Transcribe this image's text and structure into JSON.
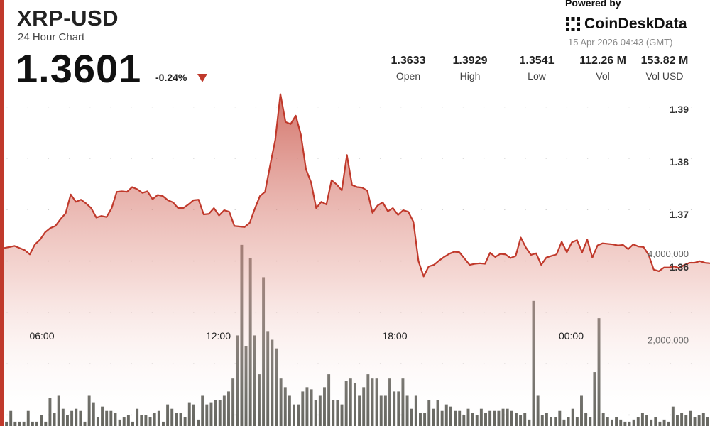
{
  "header": {
    "pair": "XRP-USD",
    "subtitle": "24 Hour Chart",
    "price": "1.3601",
    "change": "-0.24%",
    "powered_by": "Powered by",
    "brand": "CoinDeskData",
    "timestamp": "15 Apr 2026 04:43 (GMT)"
  },
  "stats": [
    {
      "value": "1.3633",
      "label": "Open"
    },
    {
      "value": "1.3929",
      "label": "High"
    },
    {
      "value": "1.3541",
      "label": "Low"
    },
    {
      "value": "112.26 M",
      "label": "Vol"
    },
    {
      "value": "153.82 M",
      "label": "Vol USD"
    }
  ],
  "colors": {
    "accent": "#c0392b",
    "line": "#c0392b",
    "volume_bar": "#666660",
    "grid_dot": "#c8c8c8"
  },
  "chart_data": {
    "type": "line",
    "title": "",
    "xlabel": "",
    "ylabel": "",
    "x_ticks": [
      "06:00",
      "12:00",
      "18:00",
      "00:00"
    ],
    "x_tick_hours": [
      6,
      12,
      18,
      24
    ],
    "x_range_hours": [
      4.72,
      28.72
    ],
    "price_axis": {
      "ticks": [
        "1.39",
        "1.38",
        "1.37",
        "1.36"
      ],
      "tick_values": [
        1.39,
        1.38,
        1.37,
        1.36
      ],
      "ylim": [
        1.3541,
        1.3929
      ]
    },
    "volume_axis": {
      "ticks": [
        "4,000,000",
        "2,000,000"
      ],
      "tick_values": [
        4000000,
        2000000
      ],
      "ylim": [
        0,
        4600000
      ]
    },
    "grid": "dotted-vertical",
    "price_series": {
      "name": "",
      "values": [
        1.3636,
        1.3638,
        1.364,
        1.3636,
        1.3632,
        1.3624,
        1.3643,
        1.3652,
        1.3666,
        1.3674,
        1.3678,
        1.3691,
        1.3702,
        1.3738,
        1.3724,
        1.3728,
        1.3721,
        1.3712,
        1.3694,
        1.3697,
        1.3695,
        1.3712,
        1.3743,
        1.3744,
        1.3743,
        1.3752,
        1.3748,
        1.3741,
        1.3744,
        1.3729,
        1.3737,
        1.3735,
        1.3727,
        1.3723,
        1.3712,
        1.3712,
        1.3719,
        1.3727,
        1.3728,
        1.37,
        1.3701,
        1.3712,
        1.3698,
        1.3708,
        1.3705,
        1.3678,
        1.3677,
        1.3676,
        1.3684,
        1.3711,
        1.3735,
        1.3743,
        1.3794,
        1.3842,
        1.3929,
        1.3876,
        1.3872,
        1.3888,
        1.3852,
        1.3786,
        1.3761,
        1.3712,
        1.3724,
        1.3719,
        1.3765,
        1.3757,
        1.3746,
        1.3813,
        1.3756,
        1.3752,
        1.3751,
        1.3745,
        1.3703,
        1.3717,
        1.3723,
        1.3706,
        1.3712,
        1.3699,
        1.3708,
        1.3705,
        1.3686,
        1.3611,
        1.3582,
        1.3601,
        1.3604,
        1.3612,
        1.3619,
        1.3625,
        1.3629,
        1.3628,
        1.3616,
        1.3604,
        1.3606,
        1.3607,
        1.3606,
        1.3627,
        1.3619,
        1.3625,
        1.3624,
        1.3617,
        1.3621,
        1.3656,
        1.3637,
        1.3623,
        1.3626,
        1.3604,
        1.3618,
        1.3621,
        1.3624,
        1.3648,
        1.3628,
        1.3647,
        1.3651,
        1.3628,
        1.3652,
        1.3618,
        1.3641,
        1.3645,
        1.3644,
        1.3643,
        1.3641,
        1.3642,
        1.3634,
        1.3643,
        1.3639,
        1.3638,
        1.3623,
        1.3595,
        1.3592,
        1.3599,
        1.3599,
        1.3601,
        1.3598,
        1.3604,
        1.3608,
        1.3608,
        1.3611,
        1.3608,
        1.3607
      ]
    },
    "volume_series": {
      "name": "",
      "values": [
        100000,
        350000,
        100000,
        100000,
        100000,
        350000,
        100000,
        100000,
        250000,
        100000,
        650000,
        300000,
        700000,
        400000,
        250000,
        350000,
        400000,
        350000,
        100000,
        700000,
        550000,
        200000,
        450000,
        350000,
        350000,
        300000,
        150000,
        200000,
        250000,
        100000,
        400000,
        250000,
        250000,
        200000,
        300000,
        350000,
        100000,
        500000,
        400000,
        300000,
        300000,
        200000,
        550000,
        500000,
        150000,
        700000,
        500000,
        550000,
        600000,
        600000,
        700000,
        800000,
        1100000,
        2100000,
        4200000,
        1850000,
        3900000,
        2100000,
        1200000,
        3450000,
        2200000,
        2000000,
        1800000,
        1100000,
        900000,
        700000,
        500000,
        500000,
        800000,
        900000,
        850000,
        600000,
        700000,
        900000,
        1200000,
        600000,
        600000,
        500000,
        1050000,
        1100000,
        1000000,
        700000,
        900000,
        1200000,
        1100000,
        1100000,
        700000,
        700000,
        1100000,
        800000,
        800000,
        1100000,
        700000,
        400000,
        700000,
        300000,
        300000,
        600000,
        400000,
        600000,
        350000,
        500000,
        450000,
        350000,
        350000,
        250000,
        400000,
        300000,
        250000,
        400000,
        300000,
        350000,
        350000,
        350000,
        400000,
        400000,
        350000,
        300000,
        250000,
        300000,
        150000,
        2900000,
        700000,
        250000,
        300000,
        200000,
        200000,
        350000,
        150000,
        200000,
        400000,
        200000,
        700000,
        300000,
        200000,
        1250000,
        2500000,
        300000,
        200000,
        150000,
        200000,
        150000,
        100000,
        100000,
        150000,
        200000,
        300000,
        250000,
        150000,
        200000,
        100000,
        150000,
        100000,
        450000,
        250000,
        300000,
        250000,
        350000,
        200000,
        250000,
        300000,
        200000
      ]
    }
  }
}
